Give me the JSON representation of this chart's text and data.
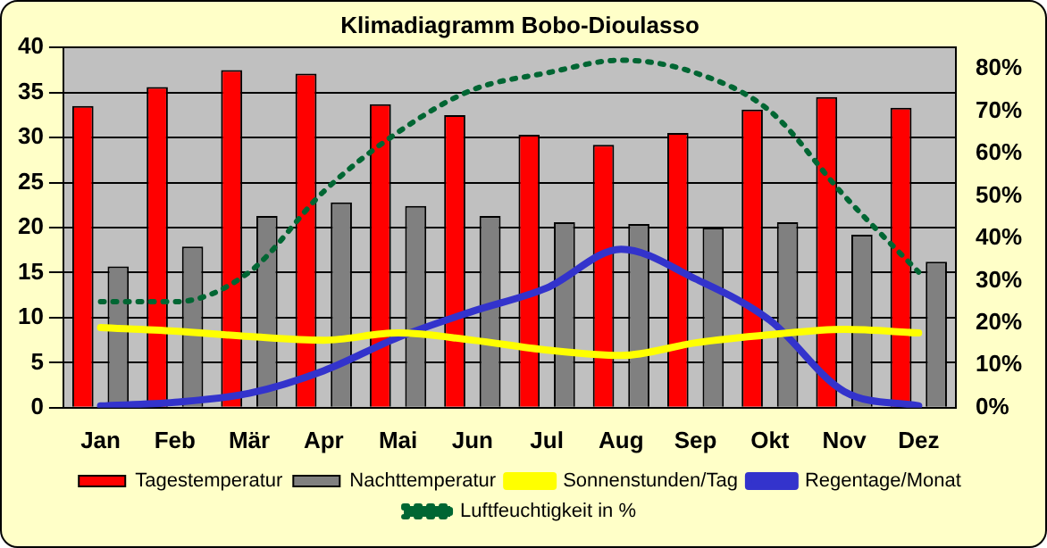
{
  "chart_data": {
    "type": "bar",
    "title": "Klimadiagramm Bobo-Dioulasso",
    "categories": [
      "Jan",
      "Feb",
      "Mär",
      "Apr",
      "Mai",
      "Jun",
      "Jul",
      "Aug",
      "Sep",
      "Okt",
      "Nov",
      "Dez"
    ],
    "series": [
      {
        "name": "Tagestemperatur",
        "color": "#ff0000",
        "values": [
          33.5,
          35.6,
          37.5,
          37.1,
          33.7,
          32.5,
          30.3,
          29.2,
          30.5,
          33.1,
          34.5,
          33.3
        ]
      },
      {
        "name": "Nachttemperatur",
        "color": "#808080",
        "values": [
          15.7,
          17.9,
          21.3,
          22.8,
          22.4,
          21.3,
          20.6,
          20.4,
          20.0,
          20.6,
          19.2,
          16.2
        ]
      },
      {
        "name": "Sonnenstunden/Tag",
        "type": "line",
        "color": "#ffff00",
        "values": [
          8.9,
          8.5,
          7.9,
          7.5,
          8.3,
          7.5,
          6.4,
          5.8,
          7.2,
          8.1,
          8.7,
          8.3
        ]
      },
      {
        "name": "Regentage/Monat",
        "type": "line",
        "color": "#3333cc",
        "values": [
          0.2,
          0.6,
          1.6,
          4.1,
          7.8,
          10.7,
          13.3,
          17.6,
          14.3,
          9.7,
          1.8,
          0.2
        ]
      },
      {
        "name": "Luftfeuchtigkeit in %",
        "type": "line",
        "axis": "y2",
        "line_style": "dotted",
        "color": "#006633",
        "values": [
          25,
          25,
          32,
          51,
          65,
          75,
          79,
          82,
          79,
          70,
          50,
          32
        ]
      }
    ],
    "ylim": [
      0,
      40
    ],
    "yticks": [
      0,
      5,
      10,
      15,
      20,
      25,
      30,
      35,
      40
    ],
    "y2lim": [
      0,
      85
    ],
    "y2ticks": [
      {
        "value": 0,
        "label": "0%"
      },
      {
        "value": 10,
        "label": "10%"
      },
      {
        "value": 20,
        "label": "20%"
      },
      {
        "value": 30,
        "label": "30%"
      },
      {
        "value": 40,
        "label": "40%"
      },
      {
        "value": 50,
        "label": "50%"
      },
      {
        "value": 60,
        "label": "60%"
      },
      {
        "value": 70,
        "label": "70%"
      },
      {
        "value": 80,
        "label": "80%"
      }
    ],
    "grid": "y",
    "legend": "bottom"
  }
}
